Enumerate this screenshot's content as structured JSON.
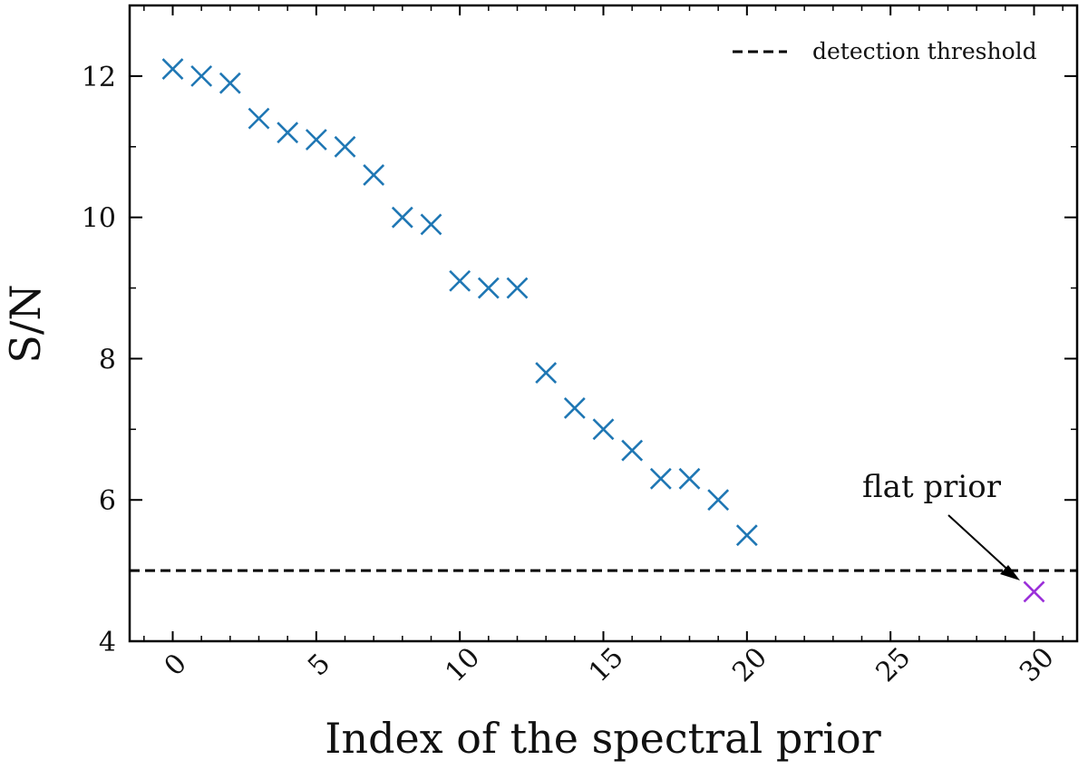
{
  "chart_data": {
    "type": "scatter",
    "xlabel": "Index of the spectral prior",
    "ylabel": "S/N",
    "xlim": [
      -1.5,
      31.5
    ],
    "ylim": [
      4,
      13
    ],
    "xticks": [
      0,
      5,
      10,
      15,
      20,
      25,
      30
    ],
    "yticks": [
      4,
      6,
      8,
      10,
      12
    ],
    "x_tick_labels": [
      "0",
      "5",
      "10",
      "15",
      "20",
      "25",
      "30"
    ],
    "y_tick_labels": [
      "4",
      "6",
      "8",
      "10",
      "12"
    ],
    "grid": false,
    "legend_position": "top-right",
    "colors": {
      "series": "#1f77b4",
      "flat": "#9b30d9",
      "threshold": "#000000"
    },
    "series": [
      {
        "marker": "x",
        "x": [
          0,
          1,
          2,
          3,
          4,
          5,
          6,
          7,
          8,
          9,
          10,
          11,
          12,
          13,
          14,
          15,
          16,
          17,
          18,
          19,
          20
        ],
        "y": [
          12.1,
          12.0,
          11.9,
          11.4,
          11.2,
          11.1,
          11.0,
          10.6,
          10.0,
          9.9,
          9.1,
          9.0,
          9.0,
          7.8,
          7.3,
          7.0,
          6.7,
          6.3,
          6.3,
          6.0,
          5.5
        ]
      },
      {
        "marker": "x",
        "x": [
          30
        ],
        "y": [
          4.7
        ]
      }
    ],
    "threshold": {
      "name": "detection threshold",
      "y": 5.0,
      "style": "dashed"
    },
    "annotations": [
      {
        "text": "flat prior",
        "x": 30,
        "y": 4.7
      }
    ]
  }
}
